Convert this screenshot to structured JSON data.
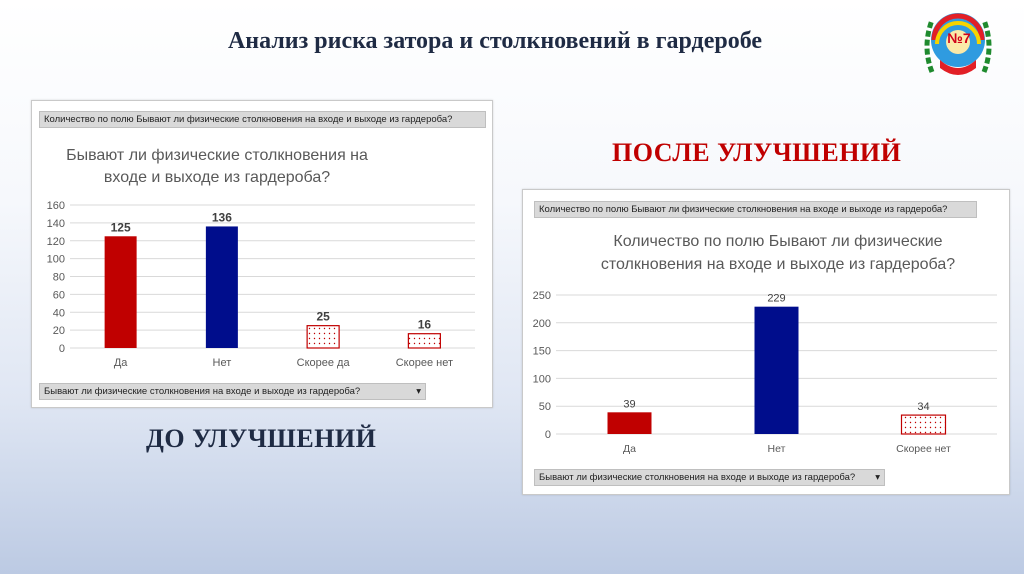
{
  "slide": {
    "title": "Анализ риска затора и столкновений в гардеробе",
    "label_after": "ПОСЛЕ УЛУЧШЕНИЙ",
    "label_before": "ДО УЛУЧШЕНИЙ",
    "logo_text": "№7"
  },
  "chart_data": [
    {
      "type": "bar",
      "field_top": "Количество по полю Бывают ли физические столкновения на входе и выходе  из гардероба?",
      "title_line1": "Бывают ли физические столкновения на",
      "title_line2": "входе и выходе  из гардероба?",
      "field_bottom": "Бывают ли физические столкновения на входе и выходе  из гардероба?",
      "dropdown_glyph": "▾",
      "categories": [
        "Да",
        "Нет",
        "Скорее да",
        "Скорее нет"
      ],
      "values": [
        125,
        136,
        25,
        16
      ],
      "colors": [
        "#c00000",
        "#000d8c",
        "dotted-red",
        "dotted-red"
      ],
      "ylim": [
        0,
        160
      ],
      "yticks": [
        0,
        20,
        40,
        60,
        80,
        100,
        120,
        140,
        160
      ],
      "data_labels_bold": true,
      "grid": true
    },
    {
      "type": "bar",
      "field_top": "Количество по полю Бывают ли физические столкновения на входе и выходе  из гардероба?",
      "title_line1": "Количество по полю Бывают ли физические",
      "title_line2": "столкновения на входе и выходе  из гардероба?",
      "field_bottom": "Бывают ли физические столкновения на входе и выходе  из гардероба?",
      "dropdown_glyph": "▾",
      "categories": [
        "Да",
        "Нет",
        "Скорее нет"
      ],
      "values": [
        39,
        229,
        34
      ],
      "colors": [
        "#c00000",
        "#000d8c",
        "dotted-red"
      ],
      "ylim": [
        0,
        250
      ],
      "yticks": [
        0,
        50,
        100,
        150,
        200,
        250
      ],
      "data_labels_bold": false,
      "grid": true
    }
  ]
}
